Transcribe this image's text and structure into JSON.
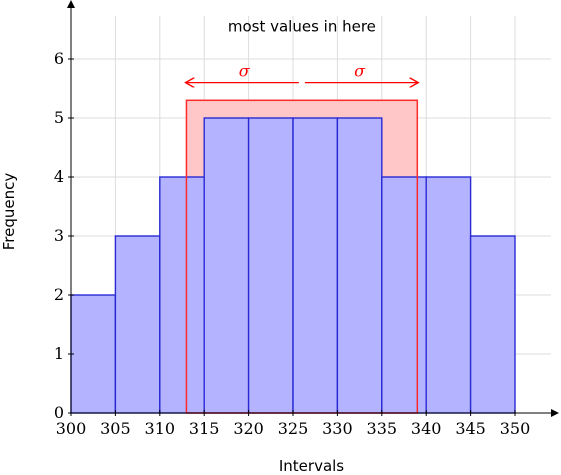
{
  "chart_data": {
    "type": "bar",
    "title": "",
    "xlabel": "Intervals",
    "ylabel": "Frequency",
    "xlim": [
      300,
      355
    ],
    "ylim": [
      0,
      7
    ],
    "grid": true,
    "x_ticks": [
      "300",
      "305",
      "310",
      "315",
      "320",
      "325",
      "330",
      "335",
      "340",
      "345",
      "350"
    ],
    "y_ticks": [
      "0",
      "1",
      "2",
      "3",
      "4",
      "5",
      "6"
    ],
    "bins": [
      {
        "start": 300,
        "end": 305,
        "value": 2
      },
      {
        "start": 305,
        "end": 310,
        "value": 3
      },
      {
        "start": 310,
        "end": 315,
        "value": 4
      },
      {
        "start": 315,
        "end": 320,
        "value": 5
      },
      {
        "start": 320,
        "end": 325,
        "value": 5
      },
      {
        "start": 325,
        "end": 330,
        "value": 5
      },
      {
        "start": 330,
        "end": 335,
        "value": 5
      },
      {
        "start": 335,
        "end": 340,
        "value": 4
      },
      {
        "start": 340,
        "end": 345,
        "value": 4
      },
      {
        "start": 345,
        "end": 350,
        "value": 3
      }
    ],
    "highlight_band": {
      "x_start": 313,
      "x_end": 339,
      "y_top": 5.3
    },
    "annotations": [
      {
        "text": "most values in here",
        "x": 326,
        "y": 6.5
      },
      {
        "text": "σ",
        "x": 319.5,
        "y": 5.6,
        "arrow_from": 326,
        "arrow_to": 313
      },
      {
        "text": "σ",
        "x": 332.5,
        "y": 5.6,
        "arrow_from": 326,
        "arrow_to": 339
      }
    ],
    "colors": {
      "bar_fill": "#b3b3ff",
      "bar_stroke": "#2a2ad4",
      "band_fill": "#ffc7c7",
      "band_stroke": "#ff2a2a",
      "sigma": "#ff0000",
      "grid": "#dcdcdc",
      "axis": "#000000"
    }
  }
}
